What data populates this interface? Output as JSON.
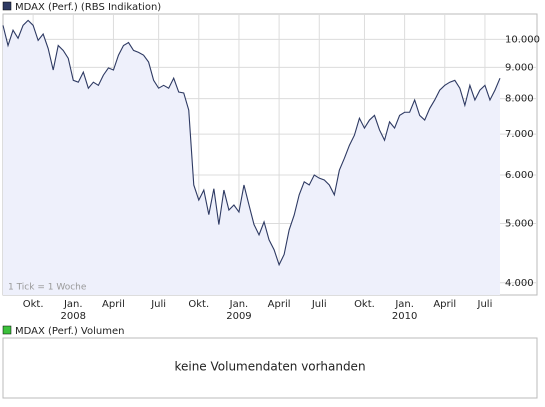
{
  "chart_data": {
    "type": "area",
    "log_scale": true,
    "grid": true,
    "annotation": "1 Tick = 1 Woche",
    "series": [
      {
        "name": "MDAX (Perf.) (RBS Indikation)",
        "color": "#2e3a63",
        "fill": "#eef0fb",
        "values": [
          10540,
          9770,
          10350,
          10040,
          10540,
          10740,
          10540,
          9960,
          10200,
          9660,
          8910,
          9770,
          9590,
          9310,
          8570,
          8510,
          8840,
          8320,
          8510,
          8410,
          8740,
          8980,
          8910,
          9420,
          9770,
          9880,
          9590,
          9520,
          9420,
          9180,
          8570,
          8320,
          8410,
          8320,
          8640,
          8200,
          8170,
          7660,
          5780,
          5460,
          5670,
          5170,
          5700,
          4980,
          5670,
          5260,
          5360,
          5220,
          5780,
          5360,
          4980,
          4790,
          5030,
          4700,
          4530,
          4280,
          4450,
          4880,
          5160,
          5570,
          5850,
          5780,
          6000,
          5930,
          5890,
          5780,
          5570,
          6110,
          6390,
          6710,
          6970,
          7430,
          7160,
          7380,
          7510,
          7110,
          6840,
          7330,
          7160,
          7510,
          7600,
          7600,
          7960,
          7510,
          7380,
          7710,
          7960,
          8260,
          8410,
          8510,
          8570,
          8320,
          7800,
          8410,
          7960,
          8260,
          8410,
          7960,
          8260,
          8640
        ]
      }
    ],
    "categories": [
      null,
      null,
      null,
      null,
      null,
      null,
      "Okt.",
      null,
      null,
      null,
      null,
      null,
      null,
      null,
      "Jan.",
      null,
      null,
      null,
      null,
      null,
      null,
      null,
      "April",
      null,
      null,
      null,
      null,
      null,
      null,
      null,
      null,
      "Juli",
      null,
      null,
      null,
      null,
      null,
      null,
      null,
      "Okt.",
      null,
      null,
      null,
      null,
      null,
      null,
      null,
      "Jan.",
      null,
      null,
      null,
      null,
      null,
      null,
      null,
      "April",
      null,
      null,
      null,
      null,
      null,
      null,
      null,
      "Juli",
      null,
      null,
      null,
      null,
      null,
      null,
      null,
      null,
      "Okt.",
      null,
      null,
      null,
      null,
      null,
      null,
      null,
      "Jan.",
      null,
      null,
      null,
      null,
      null,
      null,
      null,
      "April",
      null,
      null,
      null,
      null,
      null,
      null,
      null,
      "Juli",
      null,
      null,
      null
    ],
    "years": [
      null,
      null,
      null,
      null,
      null,
      null,
      null,
      null,
      null,
      null,
      null,
      null,
      null,
      null,
      "2008",
      null,
      null,
      null,
      null,
      null,
      null,
      null,
      null,
      null,
      null,
      null,
      null,
      null,
      null,
      null,
      null,
      null,
      null,
      null,
      null,
      null,
      null,
      null,
      null,
      null,
      null,
      null,
      null,
      null,
      null,
      null,
      null,
      "2009",
      null,
      null,
      null,
      null,
      null,
      null,
      null,
      null,
      null,
      null,
      null,
      null,
      null,
      null,
      null,
      null,
      null,
      null,
      null,
      null,
      null,
      null,
      null,
      null,
      null,
      null,
      null,
      null,
      null,
      null,
      null,
      null,
      "2010",
      null,
      null,
      null,
      null,
      null,
      null,
      null,
      null,
      null,
      null,
      null,
      null,
      null,
      null,
      null,
      null,
      null,
      null,
      null
    ],
    "ylim": [
      3820,
      11000
    ],
    "yticks": [
      {
        "value": 4000,
        "label": "4.000"
      },
      {
        "value": 5000,
        "label": "5.000"
      },
      {
        "value": 6000,
        "label": "6.000"
      },
      {
        "value": 7000,
        "label": "7.000"
      },
      {
        "value": 8000,
        "label": "8.000"
      },
      {
        "value": 9000,
        "label": "9.000"
      },
      {
        "value": 10000,
        "label": "10.000"
      }
    ]
  },
  "volume_panel": {
    "legend": "MDAX (Perf.) Volumen",
    "message": "keine Volumendaten vorhanden"
  }
}
